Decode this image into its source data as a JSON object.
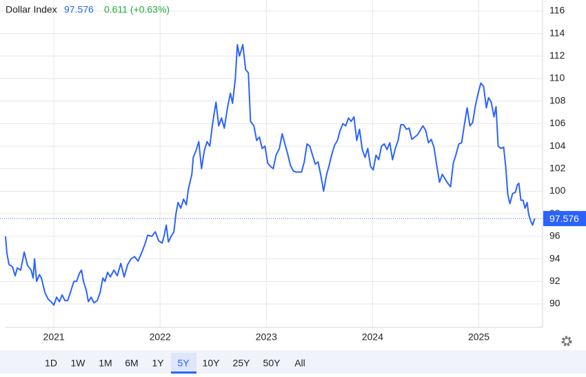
{
  "header": {
    "name": "Dollar Index",
    "last": 97.576,
    "change": "0.611 (+0.63%)"
  },
  "range_buttons": [
    "1D",
    "1W",
    "1M",
    "6M",
    "1Y",
    "5Y",
    "10Y",
    "25Y",
    "50Y",
    "All"
  ],
  "selected": "5Y",
  "chart_data": {
    "type": "line",
    "grid": true,
    "xlim": [
      2020.545,
      2025.6
    ],
    "xticks": [
      2021,
      2022,
      2023,
      2024,
      2025
    ],
    "ylim": [
      87.92,
      116.97
    ],
    "yticks": [
      90,
      92,
      94,
      96,
      98,
      100,
      102,
      104,
      106,
      108,
      110,
      112,
      114,
      116
    ],
    "x": [
      2020.545,
      2020.558,
      2020.578,
      2020.61,
      2020.636,
      2020.656,
      2020.688,
      2020.721,
      2020.753,
      2020.786,
      2020.805,
      2020.818,
      2020.838,
      2020.864,
      2020.883,
      2020.916,
      2020.948,
      2020.974,
      2021.0,
      2021.026,
      2021.052,
      2021.078,
      2021.104,
      2021.13,
      2021.162,
      2021.188,
      2021.214,
      2021.24,
      2021.26,
      2021.279,
      2021.305,
      2021.325,
      2021.351,
      2021.377,
      2021.409,
      2021.435,
      2021.461,
      2021.481,
      2021.506,
      2021.532,
      2021.565,
      2021.597,
      2021.63,
      2021.662,
      2021.695,
      2021.727,
      2021.76,
      2021.792,
      2021.825,
      2021.857,
      2021.883,
      2021.922,
      2021.955,
      2021.987,
      2022.019,
      2022.039,
      2022.058,
      2022.078,
      2022.104,
      2022.13,
      2022.149,
      2022.169,
      2022.195,
      2022.221,
      2022.247,
      2022.266,
      2022.299,
      2022.312,
      2022.338,
      2022.364,
      2022.39,
      2022.416,
      2022.442,
      2022.468,
      2022.494,
      2022.526,
      2022.552,
      2022.578,
      2022.604,
      2022.636,
      2022.662,
      2022.682,
      2022.708,
      2022.727,
      2022.747,
      2022.779,
      2022.805,
      2022.831,
      2022.851,
      2022.883,
      2022.909,
      2022.935,
      2022.961,
      2022.987,
      2023.013,
      2023.039,
      2023.065,
      2023.091,
      2023.123,
      2023.149,
      2023.175,
      2023.201,
      2023.227,
      2023.253,
      2023.279,
      2023.305,
      2023.331,
      2023.357,
      2023.383,
      2023.409,
      2023.435,
      2023.461,
      2023.487,
      2023.513,
      2023.539,
      2023.565,
      2023.591,
      2023.617,
      2023.643,
      2023.669,
      2023.695,
      2023.721,
      2023.747,
      2023.773,
      2023.799,
      2023.825,
      2023.851,
      2023.877,
      2023.903,
      2023.929,
      2023.955,
      2023.981,
      2024.006,
      2024.032,
      2024.058,
      2024.084,
      2024.11,
      2024.136,
      2024.162,
      2024.188,
      2024.214,
      2024.24,
      2024.266,
      2024.292,
      2024.318,
      2024.344,
      2024.37,
      2024.396,
      2024.422,
      2024.448,
      2024.474,
      2024.5,
      2024.526,
      2024.552,
      2024.578,
      2024.604,
      2024.63,
      2024.656,
      2024.682,
      2024.708,
      2024.734,
      2024.76,
      2024.786,
      2024.812,
      2024.838,
      2024.864,
      2024.89,
      2024.916,
      2024.942,
      2024.968,
      2024.994,
      2025.019,
      2025.045,
      2025.071,
      2025.091,
      2025.117,
      2025.143,
      2025.162,
      2025.182,
      2025.208,
      2025.234,
      2025.253,
      2025.273,
      2025.292,
      2025.318,
      2025.344,
      2025.364,
      2025.377,
      2025.396,
      2025.416,
      2025.435,
      2025.455,
      2025.468,
      2025.487,
      2025.506,
      2025.526
    ],
    "series": [
      {
        "name": "Dollar Index",
        "color": "#2962ff",
        "values": [
          96,
          94.5,
          93.5,
          93.3,
          92.5,
          93.2,
          93,
          94.6,
          93.4,
          93,
          92.3,
          94,
          92,
          92.6,
          92.3,
          91,
          90.4,
          90.2,
          89.9,
          90.6,
          90.2,
          90.8,
          90.3,
          90.3,
          91.2,
          92,
          92,
          92.7,
          93,
          92,
          91.2,
          90.2,
          90.6,
          90.1,
          90.3,
          91,
          92.3,
          92,
          92.8,
          92.4,
          93,
          92.5,
          93.6,
          92.4,
          93.5,
          94,
          94.2,
          93.8,
          94.5,
          95.3,
          96.1,
          96,
          96.4,
          95.6,
          95.4,
          96.1,
          97,
          95.5,
          96,
          96.4,
          98,
          99,
          98.5,
          99.3,
          98.8,
          100.2,
          101.5,
          103,
          103.6,
          104.4,
          102,
          103.6,
          104.4,
          104,
          106,
          107.9,
          105.8,
          106.5,
          105.6,
          107.5,
          108.7,
          107.8,
          110,
          113,
          112,
          113,
          110.8,
          110.5,
          106.2,
          105.8,
          104.5,
          104.8,
          103.8,
          104,
          102.5,
          102.2,
          102,
          103.2,
          103.8,
          105.1,
          104.2,
          103.3,
          102.3,
          101.8,
          101.7,
          101.7,
          101.7,
          102.6,
          104.2,
          104,
          103.2,
          102.4,
          102.6,
          101.4,
          100,
          101.4,
          102.3,
          103.3,
          104.1,
          104.5,
          105.4,
          106,
          105.8,
          106.5,
          106.2,
          106.6,
          104.5,
          105.5,
          103.7,
          103,
          103.8,
          102.2,
          101.9,
          103.2,
          102.8,
          104,
          104.2,
          103.7,
          104.3,
          102.8,
          103.8,
          104.5,
          105.9,
          105.9,
          105.5,
          105.6,
          104.6,
          104.8,
          105,
          105.4,
          105.8,
          105.4,
          104.3,
          104.6,
          103.9,
          102.3,
          100.8,
          101.5,
          101.1,
          100.7,
          100.4,
          102.5,
          103.3,
          104.2,
          104.3,
          105.9,
          107.4,
          105.8,
          106.1,
          107.6,
          108.7,
          109.6,
          109.3,
          107.4,
          108.3,
          107.9,
          106.6,
          107.5,
          104,
          103.8,
          103.9,
          102.2,
          99.7,
          98.9,
          99.8,
          99.9,
          100.6,
          100.7,
          99.2,
          99.2,
          98.5,
          99,
          98,
          97.4,
          97.0,
          97.576
        ]
      }
    ]
  }
}
